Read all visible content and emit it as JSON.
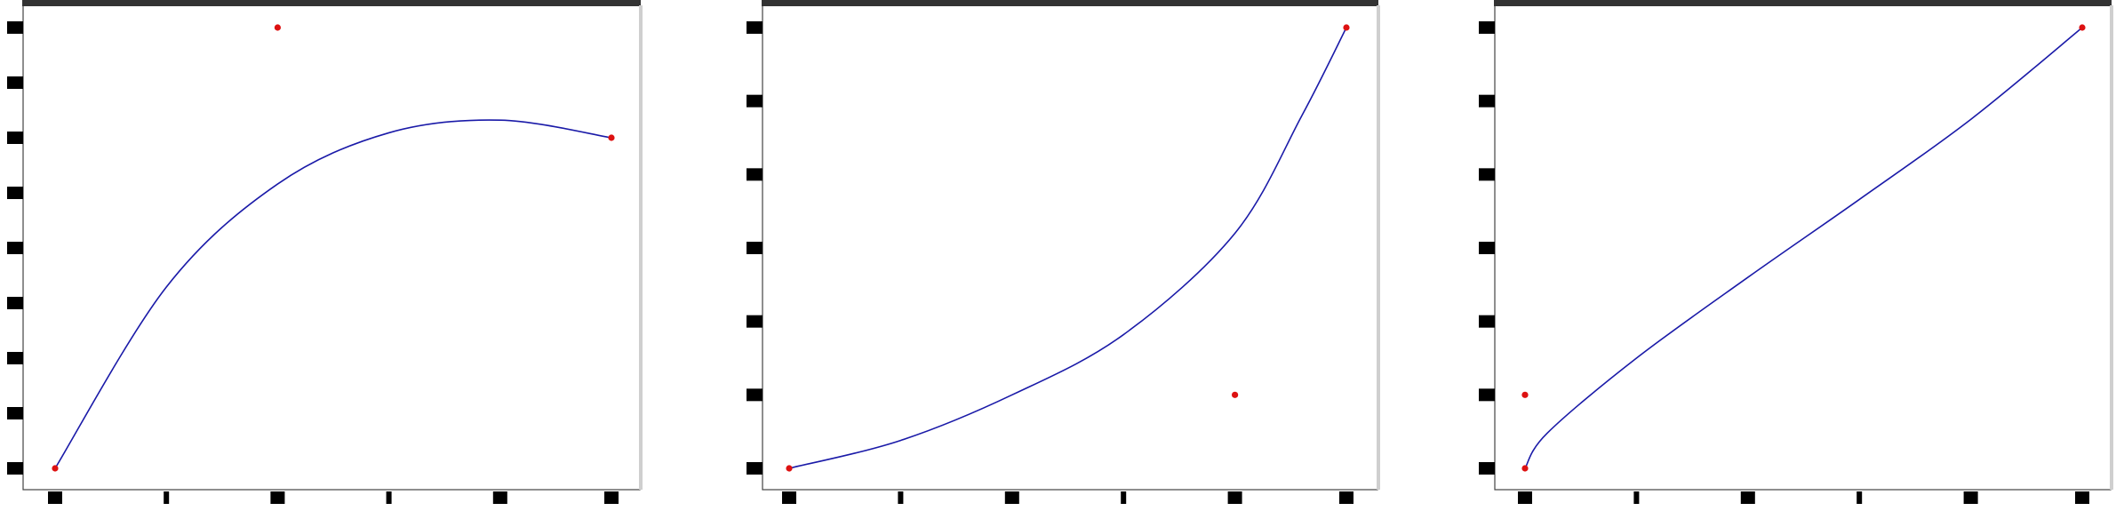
{
  "colors": {
    "curve": "#1a1aa8",
    "point": "#dd1111",
    "frame_top": "#333333",
    "frame": "#444444",
    "background": "#ffffff"
  },
  "chart_data": [
    {
      "type": "line",
      "title": "",
      "xlabel": "",
      "ylabel": "",
      "xlim": [
        0,
        5
      ],
      "ylim": [
        0,
        8
      ],
      "x_ticks": [
        0,
        1,
        2,
        3,
        4,
        5
      ],
      "y_ticks": [
        0,
        1,
        2,
        3,
        4,
        5,
        6,
        7,
        8
      ],
      "series": [
        {
          "kind": "curve",
          "values": [
            [
              0,
              0
            ],
            [
              1.0,
              3.29
            ],
            [
              2.0,
              5.16
            ],
            [
              3.0,
              6.09
            ],
            [
              4.0,
              6.32
            ],
            [
              5.0,
              6.0
            ]
          ]
        },
        {
          "kind": "points",
          "values": [
            [
              0,
              0
            ],
            [
              2,
              8
            ],
            [
              5,
              6
            ]
          ]
        }
      ]
    },
    {
      "type": "line",
      "title": "",
      "xlabel": "",
      "ylabel": "",
      "xlim": [
        0,
        5
      ],
      "ylim": [
        0,
        6
      ],
      "x_ticks": [
        0,
        1,
        2,
        3,
        4,
        5
      ],
      "y_ticks": [
        0,
        1,
        2,
        3,
        4,
        5,
        6
      ],
      "series": [
        {
          "kind": "curve",
          "values": [
            [
              0,
              0
            ],
            [
              1.0,
              0.38
            ],
            [
              2.0,
              1.0
            ],
            [
              3.0,
              1.82
            ],
            [
              4.0,
              3.2
            ],
            [
              4.6,
              4.8
            ],
            [
              5.0,
              6.0
            ]
          ]
        },
        {
          "kind": "points",
          "values": [
            [
              0,
              0
            ],
            [
              4,
              1
            ],
            [
              5,
              6
            ]
          ]
        }
      ]
    },
    {
      "type": "line",
      "title": "",
      "xlabel": "",
      "ylabel": "",
      "xlim": [
        0,
        5
      ],
      "ylim": [
        0,
        6
      ],
      "x_ticks": [
        0,
        1,
        2,
        3,
        4,
        5
      ],
      "y_ticks": [
        0,
        1,
        2,
        3,
        4,
        5,
        6
      ],
      "series": [
        {
          "kind": "curve",
          "values": [
            [
              0,
              0
            ],
            [
              0.2,
              0.48
            ],
            [
              1.0,
              1.5
            ],
            [
              2.0,
              2.6
            ],
            [
              3.0,
              3.66
            ],
            [
              4.0,
              4.75
            ],
            [
              5.0,
              6.0
            ]
          ]
        },
        {
          "kind": "points",
          "values": [
            [
              0,
              0
            ],
            [
              0,
              1
            ],
            [
              5,
              6
            ]
          ]
        }
      ]
    }
  ]
}
